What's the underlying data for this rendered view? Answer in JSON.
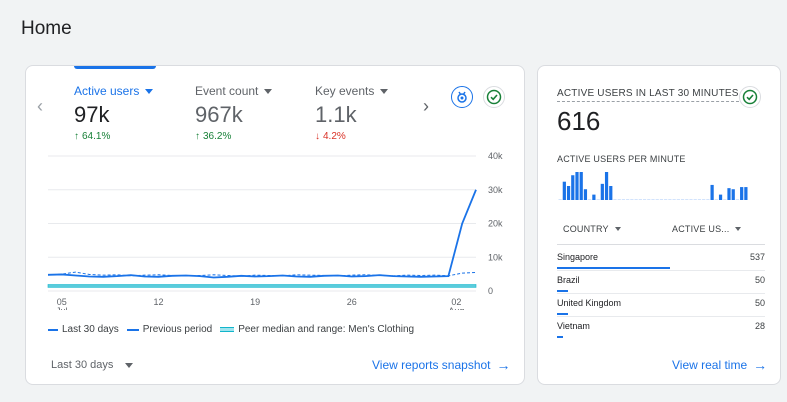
{
  "page": {
    "title": "Home"
  },
  "main": {
    "metrics": [
      {
        "label": "Active users",
        "value": "97k",
        "change": "64.1%",
        "direction": "up",
        "active": true
      },
      {
        "label": "Event count",
        "value": "967k",
        "change": "36.2%",
        "direction": "up",
        "active": false
      },
      {
        "label": "Key events",
        "value": "1.1k",
        "change": "4.2%",
        "direction": "down",
        "active": false
      }
    ],
    "icons": {
      "prev": "chevron-left-icon",
      "next": "chevron-right-icon",
      "insights": "insights-icon",
      "check": "check-circle-icon"
    },
    "legend": {
      "last30": "Last 30 days",
      "previous": "Previous period",
      "peer": "Peer median and range: Men's Clothing"
    },
    "date_range": "Last 30 days",
    "link": "View reports snapshot"
  },
  "chart_data": {
    "type": "line",
    "x_ticks": [
      "05",
      "12",
      "19",
      "26",
      "02"
    ],
    "x_tick_sub": [
      "Jul",
      "",
      "",
      "",
      "Aug"
    ],
    "y_ticks": [
      "40k",
      "30k",
      "20k",
      "10k",
      "0"
    ],
    "ylim": [
      0,
      40000
    ],
    "series": [
      {
        "name": "Last 30 days",
        "values": [
          4800,
          4900,
          4600,
          4300,
          4200,
          4400,
          4700,
          4300,
          4200,
          4500,
          4600,
          4400,
          4000,
          4200,
          4500,
          4300,
          4400,
          4600,
          4300,
          4200,
          4500,
          4600,
          4300,
          4400,
          4700,
          4400,
          4300,
          4200,
          4300,
          4400,
          20000,
          30000
        ]
      },
      {
        "name": "Previous period",
        "values": [
          4700,
          5000,
          5600,
          4900,
          4700,
          4800,
          4500,
          4700,
          4800,
          4600,
          4500,
          4600,
          4800,
          4600,
          4400,
          4700,
          4600,
          4500,
          4800,
          4700,
          4600,
          4500,
          4700,
          4800,
          4600,
          4500,
          4700,
          4600,
          4700,
          4500,
          5300,
          5500
        ]
      },
      {
        "name": "Peer median and range: Men's Clothing",
        "values": [
          1500,
          1500,
          1500,
          1500,
          1500,
          1500,
          1500,
          1500,
          1500,
          1500,
          1500,
          1500,
          1500,
          1500,
          1500,
          1500,
          1500,
          1500,
          1500,
          1500,
          1500,
          1500,
          1500,
          1500,
          1500,
          1500,
          1500,
          1500,
          1500,
          1500,
          1500,
          1500
        ]
      }
    ],
    "colors": {
      "last30": "#1a73e8",
      "previous": "#1a73e8",
      "peer": "#12b5cb",
      "grid": "#e8eaed"
    }
  },
  "realtime": {
    "title": "ACTIVE USERS IN LAST 30 MINUTES",
    "value": "616",
    "per_minute_label": "ACTIVE USERS PER MINUTE",
    "per_minute": [
      0,
      17,
      13,
      23,
      26,
      26,
      10,
      0,
      5,
      0,
      15,
      26,
      13,
      0,
      0,
      0,
      0,
      0,
      0,
      0,
      0,
      0,
      0,
      0,
      0,
      0,
      0,
      0,
      0,
      0,
      0,
      0,
      0,
      0,
      0,
      0,
      14,
      0,
      5,
      0,
      11,
      10,
      0,
      12,
      12
    ],
    "table": {
      "country_header": "COUNTRY",
      "users_header": "ACTIVE US...",
      "rows": [
        {
          "country": "Singapore",
          "users": "537",
          "share": 1.0
        },
        {
          "country": "Brazil",
          "users": "50",
          "share": 0.093
        },
        {
          "country": "United Kingdom",
          "users": "50",
          "share": 0.093
        },
        {
          "country": "Vietnam",
          "users": "28",
          "share": 0.052
        }
      ]
    },
    "link": "View real time"
  }
}
